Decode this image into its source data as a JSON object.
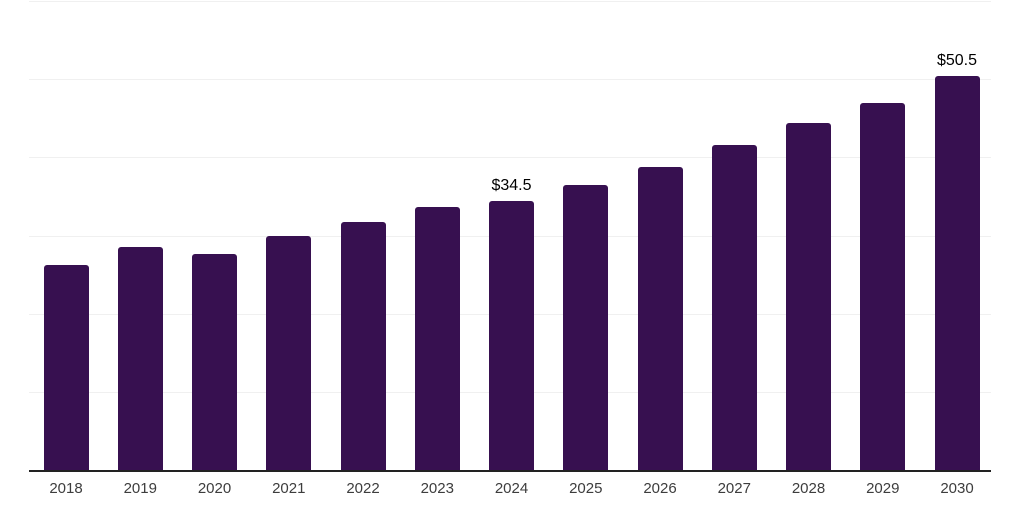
{
  "chart_data": {
    "type": "bar",
    "title": "",
    "xlabel": "",
    "ylabel": "",
    "categories": [
      "2018",
      "2019",
      "2020",
      "2021",
      "2022",
      "2023",
      "2024",
      "2025",
      "2026",
      "2027",
      "2028",
      "2029",
      "2030"
    ],
    "values": [
      26.4,
      28.6,
      27.8,
      30.1,
      31.9,
      33.8,
      34.5,
      36.6,
      38.9,
      41.7,
      44.5,
      47.1,
      50.5
    ],
    "data_labels": [
      {
        "category": "2024",
        "text": "$34.5"
      },
      {
        "category": "2030",
        "text": "$50.5"
      }
    ],
    "ylim": [
      0,
      60
    ],
    "gridline_interval": 10,
    "grid": "horizontal-only",
    "legend": "none",
    "colors": {
      "bar": "#371050",
      "axis_line": "#222222",
      "gridline": "#f0f0f0",
      "tick_label": "#3d3d3d",
      "data_label": "#000000",
      "background": "#ffffff"
    }
  }
}
